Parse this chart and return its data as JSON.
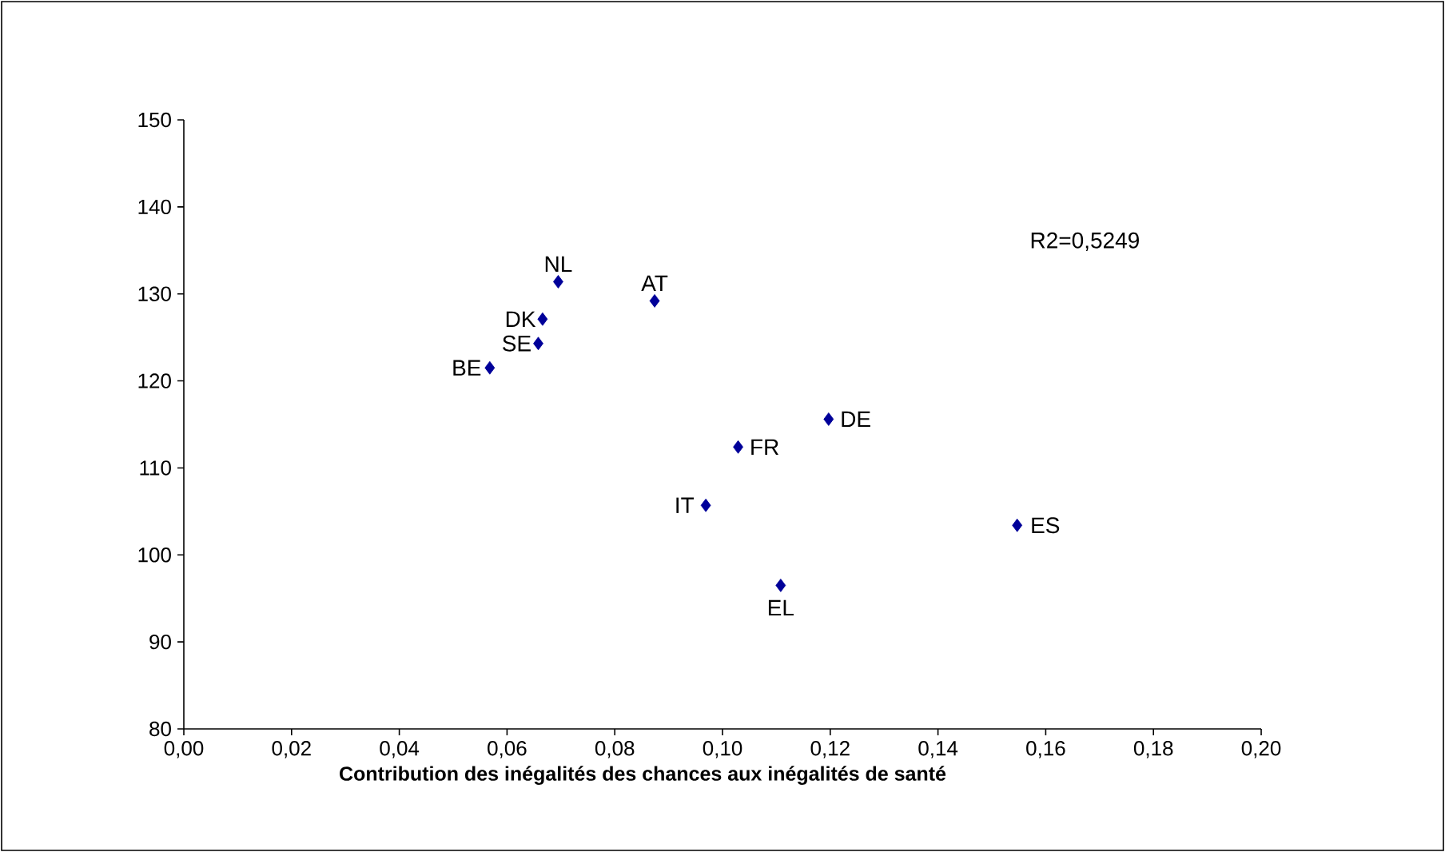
{
  "chart_data": {
    "type": "scatter",
    "xlabel": "Contribution des inégalités des chances aux inégalités de santé",
    "x": [
      0.0568,
      0.0658,
      0.0666,
      0.0695,
      0.0874,
      0.1197,
      0.1029,
      0.0969,
      0.1108,
      0.1547
    ],
    "series": [
      {
        "color": "#000099",
        "values": [
          121.5,
          124.3,
          127.1,
          131.4,
          129.2,
          115.6,
          112.4,
          105.7,
          96.5,
          103.4
        ]
      }
    ],
    "marker": "diamond",
    "xlim": [
      0,
      0.2
    ],
    "xticks": [
      {
        "value": 0,
        "label": "0,00"
      },
      {
        "value": 0.02,
        "label": "0,02"
      },
      {
        "value": 0.04,
        "label": "0,04"
      },
      {
        "value": 0.06,
        "label": "0,06"
      },
      {
        "value": 0.08,
        "label": "0,08"
      },
      {
        "value": 0.1,
        "label": "0,10"
      },
      {
        "value": 0.12,
        "label": "0,12"
      },
      {
        "value": 0.14,
        "label": "0,14"
      },
      {
        "value": 0.16,
        "label": "0,16"
      },
      {
        "value": 0.18,
        "label": "0,18"
      },
      {
        "value": 0.2,
        "label": "0,20"
      }
    ],
    "ylim": [
      80,
      150
    ],
    "yticks": [
      80,
      90,
      100,
      110,
      120,
      130,
      140,
      150
    ],
    "annotations": [
      {
        "text": "BE",
        "x": 0.0568,
        "y": 121.5
      },
      {
        "text": "SE",
        "x": 0.0658,
        "y": 124.3
      },
      {
        "text": "DK",
        "x": 0.0666,
        "y": 127.1
      },
      {
        "text": "NL",
        "x": 0.0695,
        "y": 131.4
      },
      {
        "text": "AT",
        "x": 0.0874,
        "y": 129.2
      },
      {
        "text": "DE",
        "x": 0.1197,
        "y": 115.6
      },
      {
        "text": "FR",
        "x": 0.1029,
        "y": 112.4
      },
      {
        "text": "IT",
        "x": 0.0969,
        "y": 105.7
      },
      {
        "text": "EL",
        "x": 0.1108,
        "y": 96.5
      },
      {
        "text": "ES",
        "x": 0.1547,
        "y": 103.4
      },
      "R2=0,5249"
    ]
  }
}
